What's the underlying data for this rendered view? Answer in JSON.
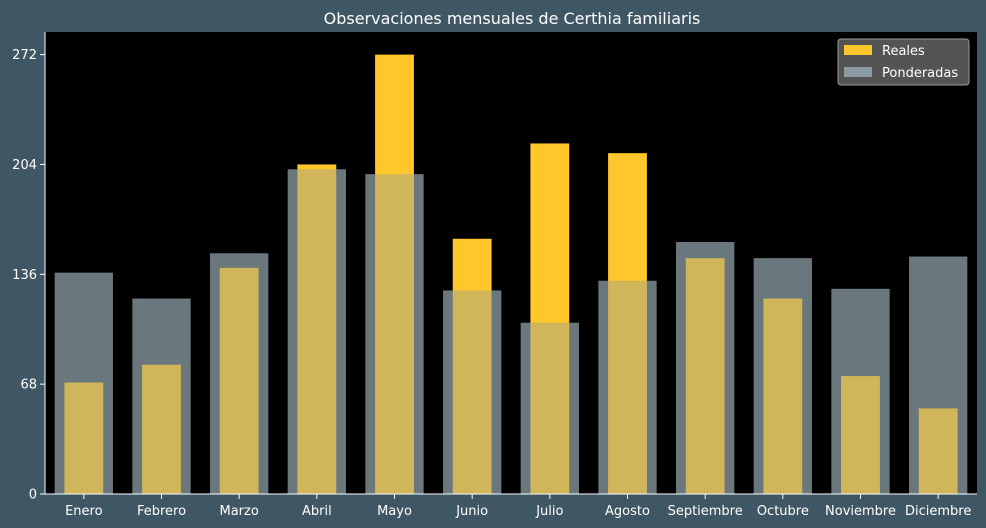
{
  "chart_data": {
    "type": "bar",
    "title": "Observaciones mensuales de Certhia familiaris",
    "xlabel": "",
    "ylabel": "",
    "categories": [
      "Enero",
      "Febrero",
      "Marzo",
      "Abril",
      "Mayo",
      "Junio",
      "Julio",
      "Agosto",
      "Septiembre",
      "Octubre",
      "Noviembre",
      "Diciembre"
    ],
    "series": [
      {
        "name": "Reales",
        "color": "#ffc72c",
        "values": [
          69,
          80,
          140,
          204,
          272,
          158,
          217,
          211,
          146,
          121,
          73,
          53
        ]
      },
      {
        "name": "Ponderadas",
        "color": "#8a9aa1",
        "values": [
          137,
          121,
          149,
          201,
          198,
          126,
          106,
          132,
          156,
          146,
          127,
          147
        ]
      }
    ],
    "yticks": [
      0,
      68,
      136,
      204,
      272
    ],
    "ylim": [
      0,
      286
    ],
    "grid": false,
    "legend_position": "top-right",
    "plot_background": "#000000",
    "page_background": "#3f5764"
  }
}
